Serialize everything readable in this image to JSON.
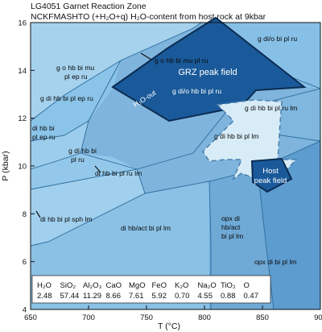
{
  "title_line1": "LG4051 Garnet Reaction Zone",
  "title_line2": "NCKFMASHTO (+H₂O+q)  H₂O-content from host rock at 9kbar",
  "axes": {
    "x_title": "T (°C)",
    "y_title": "P (kbar)",
    "x_ticks": [
      "650",
      "700",
      "750",
      "800",
      "850",
      "900"
    ],
    "y_ticks": [
      "4",
      "6",
      "8",
      "10",
      "12",
      "14",
      "16"
    ],
    "x_range": [
      650,
      900
    ],
    "y_range": [
      4,
      16
    ]
  },
  "fields": {
    "f1": "g o hb bi mu",
    "f1b": "pl ep ru",
    "f2": "g di hb bi pl ep ru",
    "f3": "di hb bi",
    "f3b": "pl ep ru",
    "f4": "g di hb bi",
    "f4b": "pl ru",
    "f5": "di hb bi pl ru lm",
    "f6": "di hb bi pl sph lm",
    "f7": "di hb/act bi pl lm",
    "f8": "g o hb bi mu pl ru",
    "f9": "g di/o hb bi pl ru",
    "f10": "g di/o bi pl ru",
    "f11": "g di hb bi pl ru lm",
    "f12": "g di hb bi pl lm",
    "f13": "opx di",
    "f13b": "hb/act",
    "f13c": "bi pl lm",
    "f14": "opx di bi pl lm"
  },
  "grz_label": "GRZ peak field",
  "h2o_out": "H₂O-out",
  "host_line1": "Host",
  "host_line2": "peak field",
  "composition": {
    "headers": [
      "H₂O",
      "SiO₂",
      "Al₂O₃",
      "CaO",
      "MgO",
      "FeO",
      "K₂O",
      "Na₂O",
      "TiO₂",
      "O"
    ],
    "values": [
      "2.48",
      "57.44",
      "11.29",
      "8.66",
      "7.61",
      "5.92",
      "0.70",
      "4.55",
      "0.88",
      "0.47"
    ]
  },
  "colors": {
    "grz": "#1a5a9a",
    "host": "#1a5a9a",
    "arrow": "#d8ecf7",
    "field_light": "#8ec5e6",
    "field_dark": "#4a97cc",
    "boundary": "#2c6b9c"
  }
}
